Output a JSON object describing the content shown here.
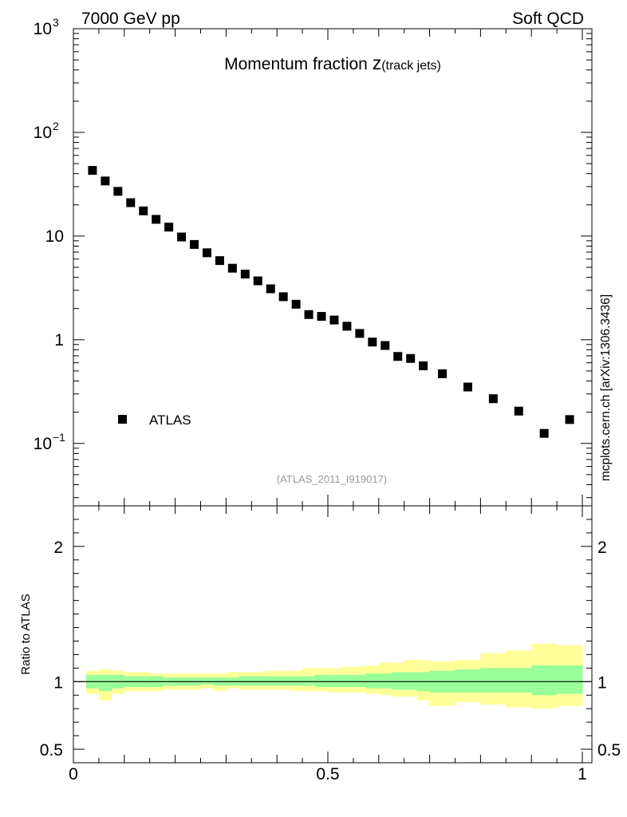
{
  "header": {
    "left": "7000 GeV pp",
    "right": "Soft QCD"
  },
  "side_label": "mcplots.cern.ch [arXiv:1306.3436]",
  "chart_data": [
    {
      "type": "scatter",
      "title_main": "Momentum fraction ",
      "title_var": "z",
      "title_sub": "(track jets)",
      "analysis_id": "(ATLAS_2011_I919017)",
      "yscale": "log",
      "ylim": [
        0.025,
        1000
      ],
      "xlim": [
        0,
        1
      ],
      "ytick_labels": [
        {
          "value": 1000,
          "base": "10",
          "exp": "3"
        },
        {
          "value": 100,
          "base": "10",
          "exp": "2"
        },
        {
          "value": 10,
          "base": "10",
          "exp": ""
        },
        {
          "value": 1,
          "base": "1",
          "exp": ""
        },
        {
          "value": 0.1,
          "base": "10",
          "exp": "−1"
        }
      ],
      "legend": {
        "label": "ATLAS",
        "marker": "square",
        "position": "lower-left"
      },
      "series": [
        {
          "name": "ATLAS",
          "x": [
            0.0375,
            0.0625,
            0.0875,
            0.1125,
            0.1375,
            0.1625,
            0.1875,
            0.2125,
            0.2375,
            0.2625,
            0.2875,
            0.3125,
            0.3375,
            0.3625,
            0.3875,
            0.4125,
            0.4375,
            0.4625,
            0.4875,
            0.5125,
            0.5375,
            0.5625,
            0.5875,
            0.6125,
            0.6375,
            0.6625,
            0.6875,
            0.725,
            0.775,
            0.825,
            0.875,
            0.925,
            0.975
          ],
          "y": [
            43,
            34,
            27,
            21,
            17.5,
            14.5,
            12.2,
            9.8,
            8.3,
            6.9,
            5.8,
            4.9,
            4.3,
            3.7,
            3.1,
            2.6,
            2.2,
            1.75,
            1.68,
            1.55,
            1.35,
            1.15,
            0.95,
            0.88,
            0.69,
            0.66,
            0.56,
            0.47,
            0.35,
            0.27,
            0.205,
            0.125,
            0.17
          ]
        }
      ]
    },
    {
      "type": "area",
      "ylabel": "Ratio to ATLAS",
      "xlabel": "",
      "ylim": [
        0.4,
        2.3
      ],
      "xlim": [
        0,
        1
      ],
      "yticks": [
        0.5,
        1,
        2
      ],
      "ytick_labels": [
        "0.5",
        "1",
        "2"
      ],
      "xticks": [
        0,
        0.5,
        1
      ],
      "xtick_labels": [
        "0",
        "0.5",
        "1"
      ],
      "reference_line": 1,
      "band_edges": [
        0.025,
        0.05,
        0.075,
        0.1,
        0.125,
        0.15,
        0.175,
        0.2,
        0.225,
        0.25,
        0.275,
        0.3,
        0.325,
        0.35,
        0.375,
        0.4,
        0.425,
        0.45,
        0.475,
        0.5,
        0.525,
        0.55,
        0.575,
        0.6,
        0.625,
        0.65,
        0.675,
        0.7,
        0.75,
        0.8,
        0.85,
        0.9,
        0.95,
        1.0
      ],
      "series": [
        {
          "name": "stat uncertainty",
          "color": "#99ff99",
          "lower": [
            0.95,
            0.93,
            0.95,
            0.96,
            0.96,
            0.96,
            0.97,
            0.97,
            0.97,
            0.98,
            0.97,
            0.97,
            0.97,
            0.97,
            0.97,
            0.97,
            0.97,
            0.97,
            0.96,
            0.96,
            0.96,
            0.96,
            0.95,
            0.95,
            0.94,
            0.94,
            0.93,
            0.92,
            0.92,
            0.92,
            0.92,
            0.9,
            0.91
          ],
          "upper": [
            1.05,
            1.05,
            1.05,
            1.04,
            1.04,
            1.04,
            1.03,
            1.03,
            1.03,
            1.03,
            1.03,
            1.03,
            1.04,
            1.04,
            1.04,
            1.04,
            1.04,
            1.04,
            1.05,
            1.05,
            1.05,
            1.05,
            1.06,
            1.06,
            1.07,
            1.07,
            1.07,
            1.08,
            1.09,
            1.1,
            1.1,
            1.12,
            1.12
          ]
        },
        {
          "name": "total uncertainty",
          "color": "#ffff99",
          "lower": [
            0.91,
            0.86,
            0.91,
            0.93,
            0.93,
            0.93,
            0.94,
            0.94,
            0.94,
            0.95,
            0.93,
            0.95,
            0.94,
            0.94,
            0.94,
            0.94,
            0.93,
            0.93,
            0.93,
            0.92,
            0.92,
            0.92,
            0.91,
            0.9,
            0.89,
            0.89,
            0.86,
            0.82,
            0.85,
            0.83,
            0.81,
            0.8,
            0.82
          ],
          "upper": [
            1.08,
            1.09,
            1.08,
            1.07,
            1.07,
            1.06,
            1.06,
            1.06,
            1.06,
            1.06,
            1.06,
            1.07,
            1.07,
            1.07,
            1.08,
            1.08,
            1.08,
            1.1,
            1.1,
            1.1,
            1.11,
            1.11,
            1.12,
            1.14,
            1.14,
            1.16,
            1.16,
            1.15,
            1.16,
            1.21,
            1.23,
            1.28,
            1.27
          ]
        }
      ]
    }
  ]
}
